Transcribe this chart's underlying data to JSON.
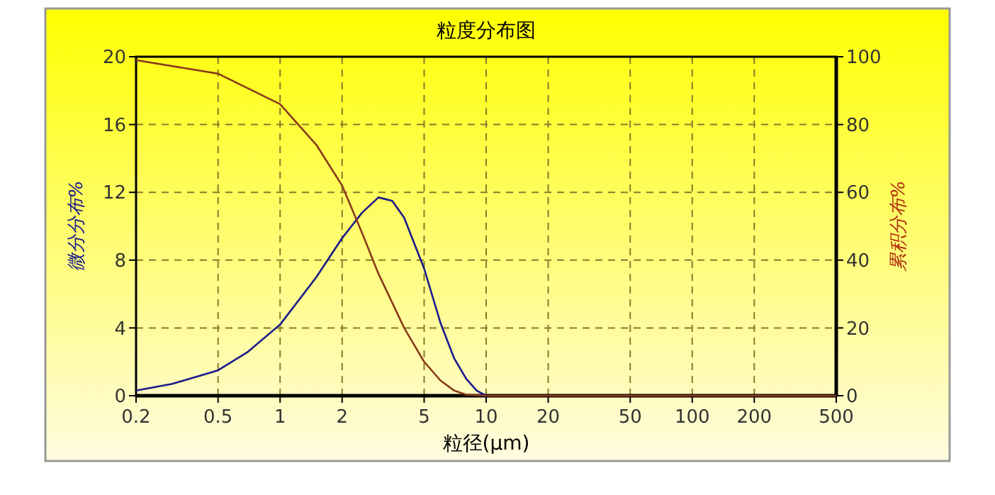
{
  "chart_data": {
    "type": "line",
    "title": "粒度分布图",
    "xlabel": "粒径(μm)",
    "ylabel": "微分分布%",
    "y2label": "累积分布%",
    "log": "x",
    "grid": true,
    "marker": "none",
    "line_style": "solid",
    "xlim": [
      0.2,
      500
    ],
    "xticks": [
      0.2,
      0.5,
      1,
      2,
      5,
      10,
      20,
      50,
      100,
      200,
      500
    ],
    "ylim": [
      0,
      20
    ],
    "yticks": [
      0,
      4,
      8,
      12,
      16,
      20
    ],
    "y2lim": [
      0,
      100
    ],
    "y2ticks": [
      0,
      20,
      40,
      60,
      80,
      100
    ],
    "series": [
      {
        "color": "#1a1a8c",
        "x": [
          0.2,
          0.3,
          0.5,
          0.7,
          1,
          1.5,
          2,
          2.5,
          3,
          3.5,
          4,
          5,
          6,
          7,
          8,
          9,
          10
        ],
        "values": [
          0.3,
          0.7,
          1.5,
          2.6,
          4.2,
          7,
          9.3,
          10.8,
          11.7,
          11.5,
          10.5,
          7.5,
          4.3,
          2.2,
          1,
          0.3,
          0
        ]
      },
      {
        "color": "#8b3a1a",
        "axis": "y2",
        "x": [
          0.2,
          0.5,
          1,
          1.5,
          2,
          2.5,
          3,
          4,
          5,
          6,
          7,
          8,
          10,
          20,
          50,
          100,
          200,
          500
        ],
        "values": [
          99,
          95,
          86,
          74,
          62,
          48,
          36,
          20,
          10,
          4.5,
          1.5,
          0.3,
          0,
          0,
          0,
          0,
          0,
          0
        ]
      }
    ]
  }
}
